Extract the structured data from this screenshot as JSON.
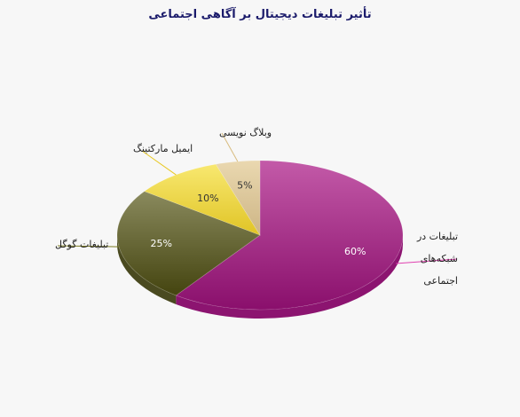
{
  "chart_data": {
    "type": "pie",
    "title": "تأثیر تبلیغات دیجیتال بر آگاهی اجتماعی",
    "categories": [
      "تبلیغات در شبکه‌های اجتماعی",
      "تبلیغات گوگل",
      "ایمیل مارکتینگ",
      "وبلاگ نویسی"
    ],
    "category_lines": [
      [
        "تبلیغات در",
        "شبکه‌های",
        "اجتماعی"
      ],
      [
        "تبلیغات گوگل"
      ],
      [
        "ایمیل مارکتینگ"
      ],
      [
        "وبلاگ نویسی"
      ]
    ],
    "values": [
      60,
      25,
      10,
      5
    ],
    "value_labels": [
      "60%",
      "25%",
      "10%",
      "5%"
    ],
    "colors": [
      "#b83a9a",
      "#6b6b3a",
      "#f0d84a",
      "#e0c898"
    ],
    "style": "3d",
    "legend": "none"
  }
}
